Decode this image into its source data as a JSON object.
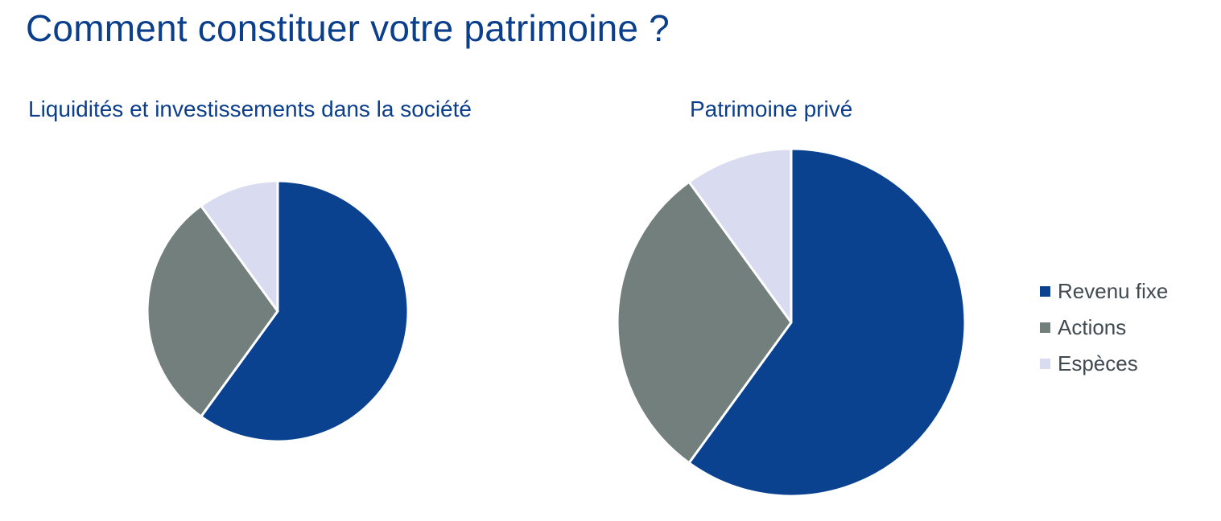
{
  "title": "Comment constituer votre patrimoine ?",
  "chart_data": [
    {
      "type": "pie",
      "title": "Liquidités et investissements dans la société",
      "categories": [
        "Revenu fixe",
        "Actions",
        "Espèces"
      ],
      "values": [
        60,
        30,
        10
      ],
      "colors": [
        "#0a4290",
        "#727f7c",
        "#d9dcf0"
      ],
      "start_angle_deg": 0,
      "direction": "clockwise"
    },
    {
      "type": "pie",
      "title": "Patrimoine privé",
      "categories": [
        "Revenu fixe",
        "Actions",
        "Espèces"
      ],
      "values": [
        60,
        30,
        10
      ],
      "colors": [
        "#0a4290",
        "#727f7c",
        "#d9dcf0"
      ],
      "start_angle_deg": 0,
      "direction": "clockwise"
    }
  ],
  "legend": {
    "placement": "right",
    "items": [
      {
        "label": "Revenu fixe",
        "color": "#0a4290"
      },
      {
        "label": "Actions",
        "color": "#727f7c"
      },
      {
        "label": "Espèces",
        "color": "#d9dcf0"
      }
    ]
  }
}
